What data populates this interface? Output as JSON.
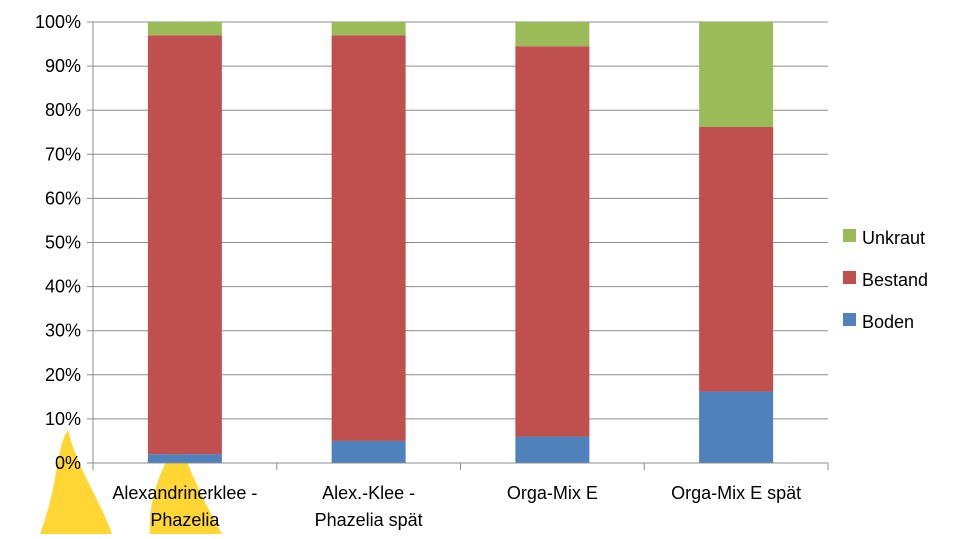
{
  "chart_data": {
    "type": "bar",
    "stacked": true,
    "percent": true,
    "title": "",
    "xlabel": "",
    "ylabel": "",
    "ylim": [
      0,
      100
    ],
    "yticks": [
      "0%",
      "10%",
      "20%",
      "30%",
      "40%",
      "50%",
      "60%",
      "70%",
      "80%",
      "90%",
      "100%"
    ],
    "grid": true,
    "legend_position": "right",
    "categories": [
      [
        "Alexandrinerklee -",
        "Phazelia"
      ],
      [
        "Alex.-Klee -",
        "Phazelia spät"
      ],
      [
        "Orga-Mix E"
      ],
      [
        "Orga-Mix E spät"
      ]
    ],
    "series": [
      {
        "name": "Boden",
        "color": "#4f81bd",
        "values": [
          2,
          5,
          6,
          16.2
        ]
      },
      {
        "name": "Bestand",
        "color": "#c0504d",
        "values": [
          95,
          92,
          88.5,
          60
        ]
      },
      {
        "name": "Unkraut",
        "color": "#9bbb59",
        "values": [
          3,
          3,
          5.5,
          23.8
        ]
      }
    ],
    "legend_order": [
      "Unkraut",
      "Bestand",
      "Boden"
    ]
  },
  "decoration": {
    "shape": "yellow-flame-watermark",
    "color": "#ffd633"
  }
}
